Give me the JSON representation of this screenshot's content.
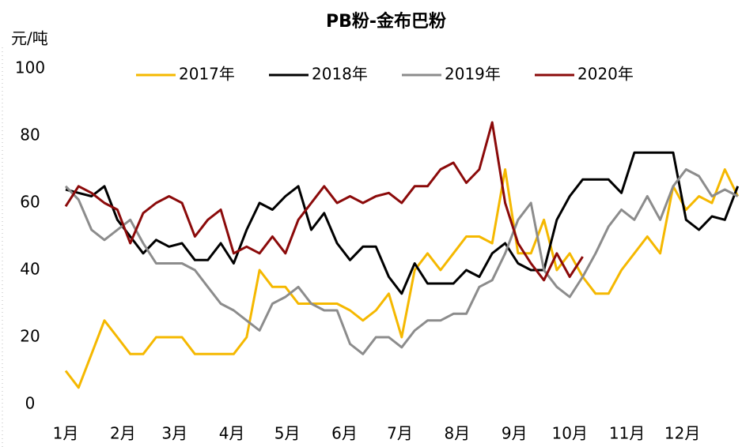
{
  "chart_data": {
    "type": "line",
    "title": "PB粉-金布巴粉",
    "y_label": "元/吨",
    "x": [
      0,
      7,
      14,
      21,
      28,
      35,
      42,
      49,
      56,
      63,
      70,
      77,
      84,
      91,
      98,
      105,
      112,
      119,
      126,
      133,
      140,
      147,
      154,
      161,
      168,
      175,
      182,
      189,
      196,
      203,
      210,
      217,
      224,
      231,
      238,
      245,
      252,
      259,
      266,
      273,
      280,
      287,
      294,
      301,
      308,
      315,
      322,
      329,
      336,
      343,
      350,
      357,
      364
    ],
    "xlim": [
      0,
      365
    ],
    "xticks": [
      {
        "value": 0,
        "label": "1月"
      },
      {
        "value": 31,
        "label": "2月"
      },
      {
        "value": 59,
        "label": "3月"
      },
      {
        "value": 90,
        "label": "4月"
      },
      {
        "value": 120,
        "label": "5月"
      },
      {
        "value": 151,
        "label": "6月"
      },
      {
        "value": 181,
        "label": "7月"
      },
      {
        "value": 212,
        "label": "8月"
      },
      {
        "value": 243,
        "label": "9月"
      },
      {
        "value": 273,
        "label": "10月"
      },
      {
        "value": 304,
        "label": "11月"
      },
      {
        "value": 334,
        "label": "12月"
      }
    ],
    "ylim": [
      0,
      100
    ],
    "yticks": [
      0,
      20,
      40,
      60,
      80,
      100
    ],
    "series": [
      {
        "name": "2017年",
        "color": "#f5b800",
        "values": [
          10,
          5,
          15,
          25,
          20,
          15,
          15,
          20,
          20,
          20,
          15,
          15,
          15,
          15,
          20,
          40,
          35,
          35,
          30,
          30,
          30,
          30,
          28,
          25,
          28,
          33,
          20,
          40,
          45,
          40,
          45,
          50,
          50,
          48,
          70,
          45,
          45,
          55,
          40,
          45,
          38,
          33,
          33,
          40,
          45,
          50,
          45,
          65,
          58,
          62,
          60,
          70,
          62
        ]
      },
      {
        "name": "2018年",
        "color": "#000000",
        "values": [
          64,
          63,
          62,
          65,
          55,
          50,
          45,
          49,
          47,
          48,
          43,
          43,
          48,
          42,
          52,
          60,
          58,
          62,
          65,
          52,
          57,
          48,
          43,
          47,
          47,
          38,
          33,
          42,
          36,
          36,
          36,
          40,
          38,
          45,
          48,
          42,
          40,
          40,
          55,
          62,
          67,
          67,
          67,
          63,
          75,
          75,
          75,
          75,
          55,
          52,
          56,
          55,
          65
        ]
      },
      {
        "name": "2019年",
        "color": "#8c8c8c",
        "values": [
          65,
          61,
          52,
          49,
          52,
          55,
          48,
          42,
          42,
          42,
          40,
          35,
          30,
          28,
          25,
          22,
          30,
          32,
          35,
          30,
          28,
          28,
          18,
          15,
          20,
          20,
          17,
          22,
          25,
          25,
          27,
          27,
          35,
          37,
          45,
          55,
          60,
          40,
          35,
          32,
          38,
          45,
          53,
          58,
          55,
          62,
          55,
          65,
          70,
          68,
          62,
          64,
          62
        ]
      },
      {
        "name": "2020年",
        "color": "#8b0a0a",
        "values": [
          59,
          65,
          63,
          60,
          58,
          48,
          57,
          60,
          62,
          60,
          50,
          55,
          58,
          45,
          47,
          45,
          50,
          45,
          55,
          60,
          65,
          60,
          62,
          60,
          62,
          63,
          60,
          65,
          65,
          70,
          72,
          66,
          70,
          84,
          60,
          48,
          42,
          37,
          45,
          38,
          44,
          null,
          null,
          null,
          null,
          null,
          null,
          null,
          null,
          null,
          null,
          null,
          null
        ]
      }
    ]
  }
}
